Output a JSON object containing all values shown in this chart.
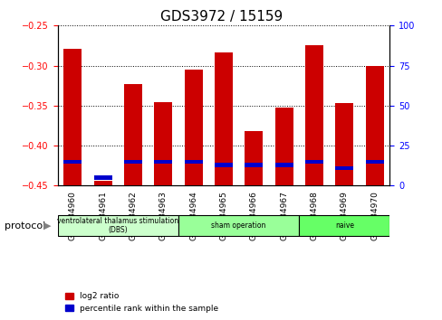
{
  "title": "GDS3972 / 15159",
  "samples": [
    "GSM634960",
    "GSM634961",
    "GSM634962",
    "GSM634963",
    "GSM634964",
    "GSM634965",
    "GSM634966",
    "GSM634967",
    "GSM634968",
    "GSM634969",
    "GSM634970"
  ],
  "log2_ratio": [
    -0.279,
    -0.444,
    -0.323,
    -0.346,
    -0.305,
    -0.284,
    -0.382,
    -0.353,
    -0.274,
    -0.347,
    -0.3
  ],
  "percentile": [
    15,
    5,
    15,
    15,
    15,
    13,
    13,
    13,
    15,
    11,
    15
  ],
  "ylim_left": [
    -0.45,
    -0.25
  ],
  "ylim_right": [
    0,
    100
  ],
  "yticks_left": [
    -0.45,
    -0.4,
    -0.35,
    -0.3,
    -0.25
  ],
  "yticks_right": [
    0,
    25,
    50,
    75,
    100
  ],
  "bar_width": 0.6,
  "red_color": "#cc0000",
  "blue_color": "#0000cc",
  "grid_color": "#000000",
  "bg_color": "#ffffff",
  "plot_bg": "#ffffff",
  "protocol_groups": [
    {
      "label": "ventrolateral thalamus stimulation\n(DBS)",
      "start": 0,
      "end": 3,
      "color": "#ccffcc"
    },
    {
      "label": "sham operation",
      "start": 4,
      "end": 7,
      "color": "#99ff99"
    },
    {
      "label": "naive",
      "start": 8,
      "end": 10,
      "color": "#66ff66"
    }
  ],
  "legend_red": "log2 ratio",
  "legend_blue": "percentile rank within the sample",
  "xlabel_protocol": "protocol"
}
